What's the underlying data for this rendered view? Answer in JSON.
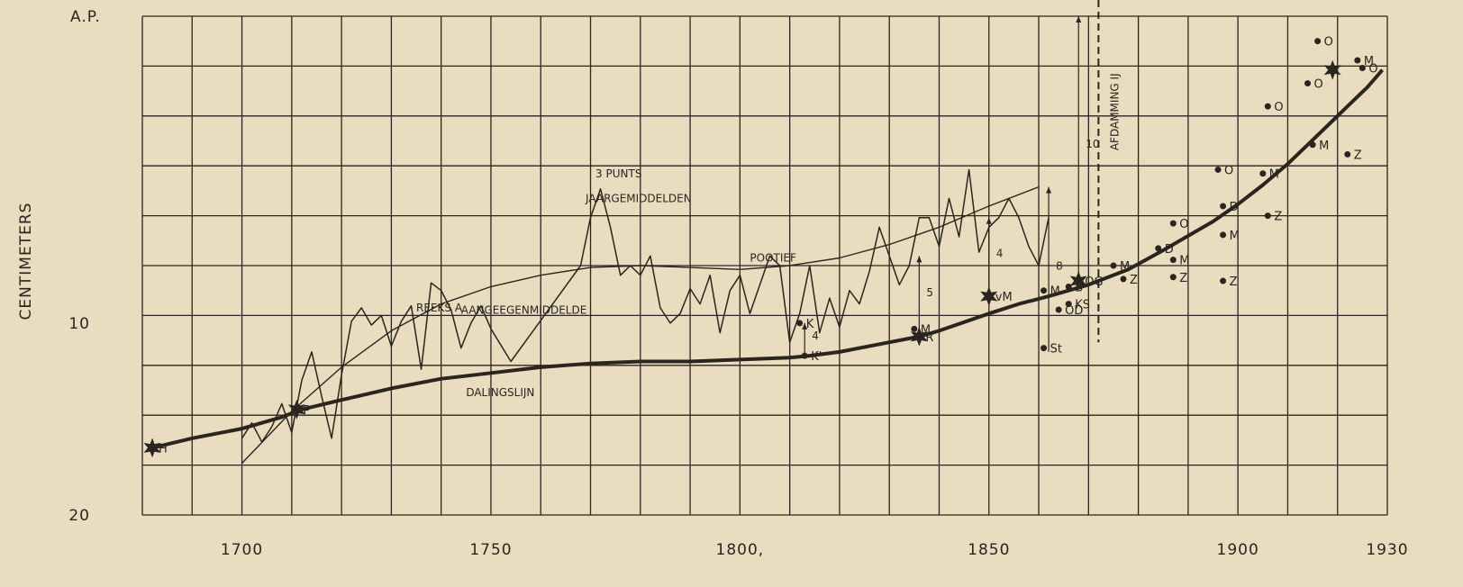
{
  "chart_data": {
    "type": "line",
    "ylabel": "CENTIMETERS",
    "y_top_label": "A.P.",
    "y_reversed": true,
    "xlim": [
      1680,
      1930
    ],
    "ylim": [
      -6,
      20
    ],
    "grid": true,
    "x_ticks": [
      {
        "value": 1700,
        "label": "1700"
      },
      {
        "value": 1750,
        "label": "1750"
      },
      {
        "value": 1800,
        "label": "1800,"
      },
      {
        "value": 1850,
        "label": "1850"
      },
      {
        "value": 1900,
        "label": "1900"
      },
      {
        "value": 1930,
        "label": "1930"
      }
    ],
    "y_ticks": [
      {
        "value": 10,
        "label": "10"
      },
      {
        "value": 20,
        "label": "20"
      }
    ],
    "series": [
      {
        "name": "DALINGSLIJN",
        "points": [
          [
            1682,
            16.5
          ],
          [
            1690,
            16.0
          ],
          [
            1700,
            15.5
          ],
          [
            1708,
            14.9
          ],
          [
            1712,
            14.5
          ],
          [
            1720,
            14.0
          ],
          [
            1730,
            13.4
          ],
          [
            1740,
            12.9
          ],
          [
            1750,
            12.6
          ],
          [
            1760,
            12.3
          ],
          [
            1770,
            12.1
          ],
          [
            1780,
            12.0
          ],
          [
            1790,
            12.0
          ],
          [
            1800,
            11.9
          ],
          [
            1810,
            11.8
          ],
          [
            1814,
            11.7
          ],
          [
            1820,
            11.5
          ],
          [
            1830,
            11.0
          ],
          [
            1836,
            10.7
          ],
          [
            1840,
            10.4
          ],
          [
            1850,
            9.5
          ],
          [
            1856,
            9.0
          ],
          [
            1862,
            8.6
          ],
          [
            1870,
            8.0
          ],
          [
            1878,
            7.2
          ],
          [
            1885,
            6.2
          ],
          [
            1895,
            4.7
          ],
          [
            1900,
            3.8
          ],
          [
            1905,
            2.8
          ],
          [
            1910,
            1.7
          ],
          [
            1914,
            0.7
          ],
          [
            1918,
            -0.3
          ],
          [
            1922,
            -1.3
          ],
          [
            1926,
            -2.3
          ],
          [
            1929,
            -3.2
          ]
        ]
      },
      {
        "name": "REEKS A AANGEEGENMIDDELDE",
        "points": [
          [
            1700,
            17.3
          ],
          [
            1710,
            14.6
          ],
          [
            1720,
            12.3
          ],
          [
            1730,
            10.4
          ],
          [
            1740,
            9.0
          ],
          [
            1750,
            8.1
          ],
          [
            1760,
            7.5
          ],
          [
            1770,
            7.1
          ],
          [
            1780,
            7.0
          ],
          [
            1790,
            7.1
          ],
          [
            1800,
            7.2
          ],
          [
            1810,
            7.0
          ],
          [
            1820,
            6.6
          ],
          [
            1830,
            5.9
          ],
          [
            1840,
            5.0
          ],
          [
            1850,
            3.9
          ],
          [
            1860,
            2.9
          ]
        ]
      },
      {
        "name": "3 PUNTS JAARGEMIDDELDEN",
        "points": [
          [
            1700,
            16.0
          ],
          [
            1702,
            15.2
          ],
          [
            1704,
            16.2
          ],
          [
            1706,
            15.4
          ],
          [
            1708,
            14.2
          ],
          [
            1710,
            15.7
          ],
          [
            1712,
            13.0
          ],
          [
            1714,
            11.5
          ],
          [
            1716,
            13.8
          ],
          [
            1718,
            16.0
          ],
          [
            1720,
            12.7
          ],
          [
            1722,
            9.9
          ],
          [
            1724,
            9.2
          ],
          [
            1726,
            10.1
          ],
          [
            1728,
            9.6
          ],
          [
            1730,
            11.2
          ],
          [
            1732,
            9.9
          ],
          [
            1734,
            9.1
          ],
          [
            1736,
            12.4
          ],
          [
            1738,
            7.9
          ],
          [
            1740,
            8.3
          ],
          [
            1742,
            9.3
          ],
          [
            1744,
            11.3
          ],
          [
            1746,
            10.0
          ],
          [
            1748,
            9.1
          ],
          [
            1750,
            10.3
          ],
          [
            1754,
            12.0
          ],
          [
            1768,
            7.0
          ],
          [
            1770,
            4.5
          ],
          [
            1772,
            3.0
          ],
          [
            1774,
            5.0
          ],
          [
            1776,
            7.5
          ],
          [
            1778,
            7.0
          ],
          [
            1780,
            7.5
          ],
          [
            1782,
            6.5
          ],
          [
            1784,
            9.2
          ],
          [
            1786,
            10.0
          ],
          [
            1788,
            9.5
          ],
          [
            1790,
            8.2
          ],
          [
            1792,
            9.0
          ],
          [
            1794,
            7.5
          ],
          [
            1796,
            10.5
          ],
          [
            1798,
            8.3
          ],
          [
            1800,
            7.5
          ],
          [
            1802,
            9.5
          ],
          [
            1804,
            8.0
          ],
          [
            1806,
            6.5
          ],
          [
            1808,
            7.0
          ],
          [
            1810,
            11.0
          ],
          [
            1812,
            9.5
          ],
          [
            1814,
            7.0
          ],
          [
            1816,
            10.5
          ],
          [
            1818,
            8.7
          ],
          [
            1820,
            10.2
          ],
          [
            1822,
            8.3
          ],
          [
            1824,
            9.0
          ],
          [
            1826,
            7.3
          ],
          [
            1828,
            5.0
          ],
          [
            1830,
            6.5
          ],
          [
            1832,
            8.0
          ],
          [
            1834,
            7.0
          ],
          [
            1836,
            4.5
          ],
          [
            1838,
            4.5
          ],
          [
            1840,
            6.0
          ],
          [
            1842,
            3.5
          ],
          [
            1844,
            5.5
          ],
          [
            1846,
            2.0
          ],
          [
            1848,
            6.3
          ],
          [
            1850,
            5.0
          ],
          [
            1852,
            4.5
          ],
          [
            1854,
            3.5
          ],
          [
            1856,
            4.5
          ],
          [
            1858,
            6.0
          ],
          [
            1860,
            7.0
          ],
          [
            1862,
            4.5
          ]
        ]
      }
    ],
    "points": [
      {
        "label": "H",
        "x": 1682,
        "y": 16.5,
        "marker": "star"
      },
      {
        "label": "P",
        "x": 1711,
        "y": 14.5,
        "marker": "star"
      },
      {
        "label": "K",
        "x": 1812,
        "y": 10.0,
        "marker": "dot"
      },
      {
        "label": "K'",
        "x": 1813,
        "y": 11.7,
        "marker": "dot"
      },
      {
        "label": "M",
        "x": 1835,
        "y": 10.3,
        "marker": "dot"
      },
      {
        "label": "R",
        "x": 1836,
        "y": 10.7,
        "marker": "star"
      },
      {
        "label": "vM",
        "x": 1850,
        "y": 8.6,
        "marker": "star"
      },
      {
        "label": "M",
        "x": 1861,
        "y": 8.3,
        "marker": "dot"
      },
      {
        "label": "St",
        "x": 1861,
        "y": 11.3,
        "marker": "dot"
      },
      {
        "label": "B",
        "x": 1866,
        "y": 8.1,
        "marker": "dot"
      },
      {
        "label": "OG",
        "x": 1868,
        "y": 7.8,
        "marker": "star"
      },
      {
        "label": "KS",
        "x": 1866,
        "y": 9.0,
        "marker": "dot"
      },
      {
        "label": "OD",
        "x": 1864,
        "y": 9.3,
        "marker": "dot"
      },
      {
        "label": "M",
        "x": 1875,
        "y": 7.0,
        "marker": "dot"
      },
      {
        "label": "Z",
        "x": 1877,
        "y": 7.7,
        "marker": "dot"
      },
      {
        "label": "D",
        "x": 1884,
        "y": 6.1,
        "marker": "dot"
      },
      {
        "label": "O",
        "x": 1887,
        "y": 4.8,
        "marker": "dot"
      },
      {
        "label": "M",
        "x": 1887,
        "y": 6.7,
        "marker": "dot"
      },
      {
        "label": "Z",
        "x": 1887,
        "y": 7.6,
        "marker": "dot"
      },
      {
        "label": "D",
        "x": 1897,
        "y": 3.9,
        "marker": "dot"
      },
      {
        "label": "M",
        "x": 1897,
        "y": 5.4,
        "marker": "dot"
      },
      {
        "label": "Z",
        "x": 1897,
        "y": 7.8,
        "marker": "dot"
      },
      {
        "label": "O",
        "x": 1896,
        "y": 2.0,
        "marker": "dot"
      },
      {
        "label": "M",
        "x": 1905,
        "y": 2.2,
        "marker": "dot"
      },
      {
        "label": "Z",
        "x": 1906,
        "y": 4.4,
        "marker": "dot"
      },
      {
        "label": "O",
        "x": 1906,
        "y": -1.3,
        "marker": "dot"
      },
      {
        "label": "M",
        "x": 1915,
        "y": 0.7,
        "marker": "dot"
      },
      {
        "label": "Z",
        "x": 1922,
        "y": 1.2,
        "marker": "dot"
      },
      {
        "label": "O",
        "x": 1914,
        "y": -2.5,
        "marker": "dot"
      },
      {
        "label": "O",
        "x": 1916,
        "y": -4.7,
        "marker": "dot"
      },
      {
        "label": "M",
        "x": 1924,
        "y": -3.7,
        "marker": "dot"
      },
      {
        "label": "O",
        "x": 1925,
        "y": -3.3,
        "marker": "dot"
      },
      {
        "label": "",
        "x": 1919,
        "y": -3.2,
        "marker": "star"
      }
    ],
    "vertical_markers": [
      {
        "label": "4",
        "x": 1813,
        "y_from": 10.0,
        "y_to": 11.7
      },
      {
        "label": "5",
        "x": 1836,
        "y_from": 6.5,
        "y_to": 10.7
      },
      {
        "label": "4",
        "x": 1850,
        "y_from": 4.5,
        "y_to": 8.6
      },
      {
        "label": "8",
        "x": 1862,
        "y_from": 2.9,
        "y_to": 11.5
      },
      {
        "label": "10",
        "x": 1868,
        "y_from": -6.0,
        "y_to": 7.7
      }
    ],
    "annotations": [
      {
        "text": "3 PUNTS",
        "x": 1771,
        "y": 2.4
      },
      {
        "text": "JAARGEMIDDELDEN",
        "x": 1769,
        "y": 3.7
      },
      {
        "text": "AFDAMMING IJ",
        "x": 1876,
        "y": 1.0,
        "vertical": true
      },
      {
        "text": "DALINGSLIJN",
        "x": 1745,
        "y": 13.8
      },
      {
        "text": "REEKS A",
        "x": 1735,
        "y": 9.4
      },
      {
        "text": "AANGEEGENMIDDELDE",
        "x": 1744,
        "y": 9.5
      },
      {
        "text": "POOTIEF",
        "x": 1802,
        "y": 6.8
      }
    ],
    "dam_line_x": 1872
  }
}
